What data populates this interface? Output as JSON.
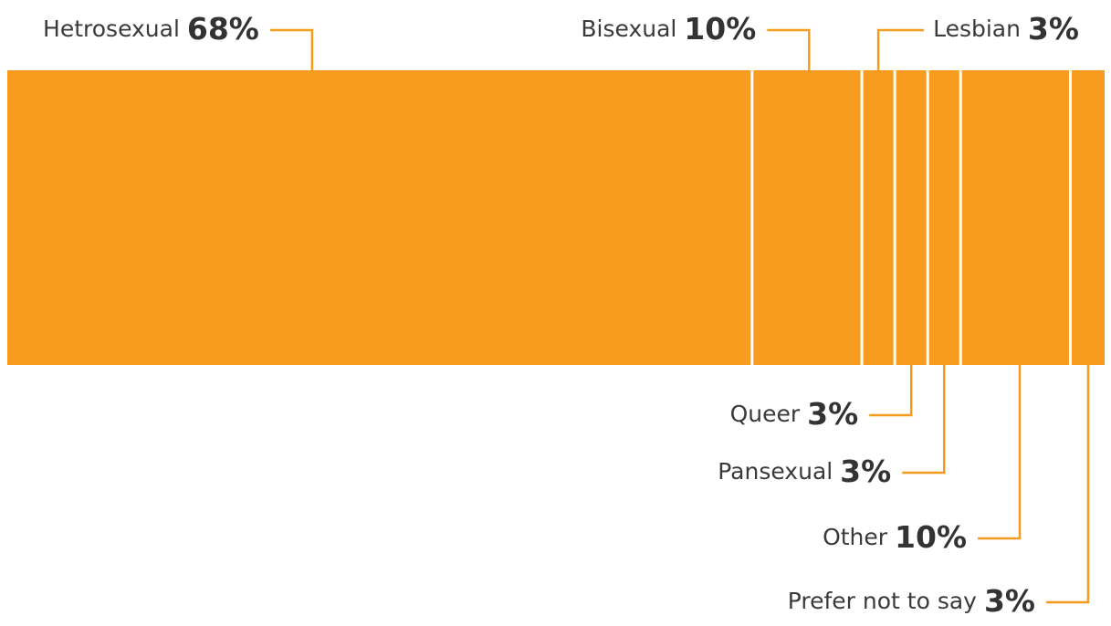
{
  "chart_data": {
    "type": "stacked-bar",
    "categories": [
      "Hetrosexual",
      "Bisexual",
      "Lesbian",
      "Queer",
      "Pansexual",
      "Other",
      "Prefer not to say"
    ],
    "values": [
      68,
      10,
      3,
      3,
      3,
      10,
      3
    ],
    "value_labels": [
      "68%",
      "10%",
      "3%",
      "3%",
      "3%",
      "10%",
      "3%"
    ],
    "color": "#f79c1e"
  }
}
